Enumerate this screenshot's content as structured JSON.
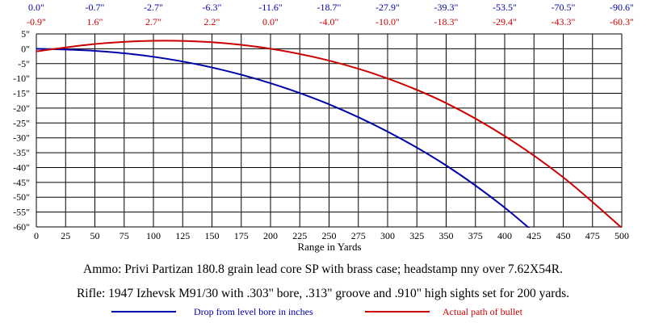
{
  "chart_data": {
    "type": "line",
    "title": "",
    "xlabel": "Range in Yards",
    "ylabel": "",
    "xlim": [
      0,
      500
    ],
    "ylim": [
      -60,
      5
    ],
    "grid": true,
    "x_ticks": [
      0,
      25,
      50,
      75,
      100,
      125,
      150,
      175,
      200,
      225,
      250,
      275,
      300,
      325,
      350,
      375,
      400,
      425,
      450,
      475,
      500
    ],
    "x_tick_labels": [
      "0",
      "25",
      "50",
      "75",
      "100",
      "125",
      "150",
      "175",
      "200",
      "225",
      "250",
      "275",
      "300",
      "325",
      "350",
      "375",
      "400",
      "425",
      "450",
      "475",
      "500"
    ],
    "y_ticks": [
      5,
      0,
      -5,
      -10,
      -15,
      -20,
      -25,
      -30,
      -35,
      -40,
      -45,
      -50,
      -55,
      -60
    ],
    "y_tick_labels": [
      "5\"",
      "0\"",
      "-5\"",
      "-10\"",
      "-15\"",
      "-20\"",
      "-25\"",
      "-30\"",
      "-35\"",
      "-40\"",
      "-45\"",
      "-50\"",
      "-55\"",
      "-60\""
    ],
    "table_x": [
      0,
      50,
      100,
      150,
      200,
      250,
      300,
      350,
      400,
      450,
      500
    ],
    "table_drop_labels": [
      "0.0\"",
      "-0.7\"",
      "-2.7\"",
      "-6.3\"",
      "-11.6\"",
      "-18.7\"",
      "-27.9\"",
      "-39.3\"",
      "-53.5\"",
      "-70.5\"",
      "-90.6\""
    ],
    "table_path_labels": [
      "-0.9\"",
      "1.6\"",
      "2.7\"",
      "2.2\"",
      "0.0\"",
      "-4.0\"",
      "-10.0\"",
      "-18.3\"",
      "-29.4\"",
      "-43.3\"",
      "-60.3\""
    ],
    "series": [
      {
        "name": "Drop from level bore in inches",
        "color": "#0000aa",
        "x": [
          0,
          50,
          100,
          150,
          200,
          250,
          300,
          350,
          400,
          450
        ],
        "y": [
          0.0,
          -0.7,
          -2.7,
          -6.3,
          -11.6,
          -18.7,
          -27.9,
          -39.3,
          -53.5,
          -70.5
        ]
      },
      {
        "name": "Actual path of bullet",
        "color": "#cc0000",
        "x": [
          0,
          50,
          100,
          150,
          200,
          250,
          300,
          350,
          400,
          450,
          500
        ],
        "y": [
          -0.9,
          1.6,
          2.7,
          2.2,
          0.0,
          -4.0,
          -10.0,
          -18.3,
          -29.4,
          -43.3,
          -60.3
        ]
      }
    ]
  },
  "notes": {
    "ammo": "Ammo:  Privi Partizan 180.8 grain lead core SP with brass case; headstamp nny over 7.62X54R.",
    "rifle": "Rifle:  1947 Izhevsk M91/30 with .303\" bore, .313\" groove and .910\" high sights set for 200 yards."
  },
  "legend": {
    "drop_label": "Drop from level bore in inches",
    "path_label": "Actual path of bullet",
    "drop_color": "#0000aa",
    "path_color": "#cc0000"
  }
}
